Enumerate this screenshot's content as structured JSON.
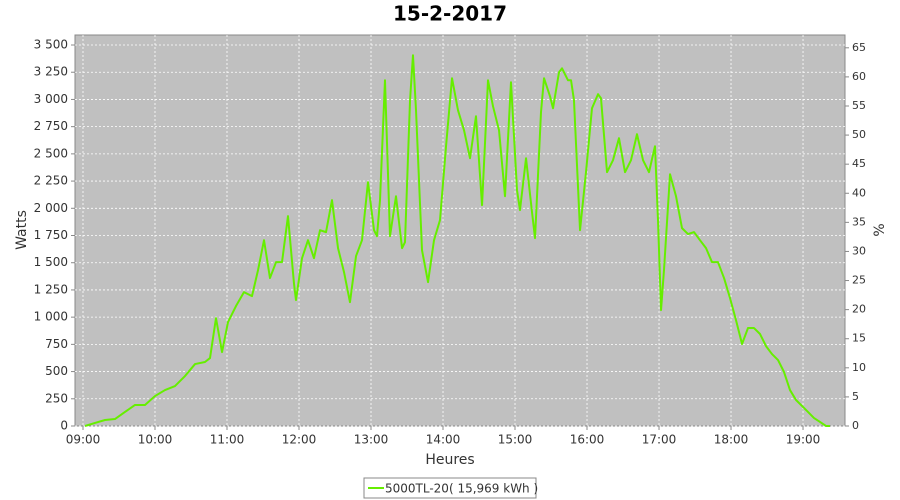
{
  "chart_data": {
    "type": "line",
    "title": "15-2-2017",
    "x_label": "Heures",
    "y_label": "Watts",
    "y2_label": "%",
    "grid": true,
    "xlim": [
      8.889,
      19.583
    ],
    "xticks": [
      {
        "value": 9,
        "label": "09:00"
      },
      {
        "value": 10,
        "label": "10:00"
      },
      {
        "value": 11,
        "label": "11:00"
      },
      {
        "value": 12,
        "label": "12:00"
      },
      {
        "value": 13,
        "label": "13:00"
      },
      {
        "value": 14,
        "label": "14:00"
      },
      {
        "value": 15,
        "label": "15:00"
      },
      {
        "value": 16,
        "label": "16:00"
      },
      {
        "value": 17,
        "label": "17:00"
      },
      {
        "value": 18,
        "label": "18:00"
      },
      {
        "value": 19,
        "label": "19:00"
      }
    ],
    "ylim": [
      0,
      3592
    ],
    "yticks": [
      0,
      250,
      500,
      750,
      {
        "value": 1000,
        "label": "1 000"
      },
      {
        "value": 1250,
        "label": "1 250"
      },
      {
        "value": 1500,
        "label": "1 500"
      },
      {
        "value": 1750,
        "label": "1 750"
      },
      {
        "value": 2000,
        "label": "2 000"
      },
      {
        "value": 2250,
        "label": "2 250"
      },
      {
        "value": 2500,
        "label": "2 500"
      },
      {
        "value": 2750,
        "label": "2 750"
      },
      {
        "value": 3000,
        "label": "3 000"
      },
      {
        "value": 3250,
        "label": "3 250"
      },
      {
        "value": 3500,
        "label": "3 500"
      }
    ],
    "y2lim": [
      0,
      67.2
    ],
    "y2ticks": [
      0,
      5,
      10,
      15,
      20,
      25,
      30,
      35,
      40,
      45,
      50,
      55,
      60,
      65
    ],
    "x": [
      9.028,
      9.167,
      9.306,
      9.444,
      9.583,
      9.722,
      9.861,
      10.0,
      10.139,
      10.278,
      10.417,
      10.556,
      10.694,
      10.764,
      10.847,
      10.931,
      11.014,
      11.125,
      11.236,
      11.347,
      11.431,
      11.514,
      11.597,
      11.681,
      11.764,
      11.847,
      11.931,
      11.958,
      12.042,
      12.125,
      12.208,
      12.292,
      12.375,
      12.458,
      12.542,
      12.625,
      12.708,
      12.792,
      12.875,
      12.958,
      13.042,
      13.083,
      13.125,
      13.194,
      13.264,
      13.347,
      13.431,
      13.472,
      13.542,
      13.583,
      13.625,
      13.708,
      13.792,
      13.875,
      13.958,
      14.042,
      14.125,
      14.208,
      14.292,
      14.375,
      14.458,
      14.542,
      14.625,
      14.694,
      14.778,
      14.861,
      14.944,
      15.028,
      15.069,
      15.153,
      15.236,
      15.278,
      15.361,
      15.403,
      15.486,
      15.528,
      15.611,
      15.653,
      15.736,
      15.778,
      15.819,
      15.903,
      15.986,
      16.069,
      16.153,
      16.194,
      16.278,
      16.361,
      16.444,
      16.528,
      16.611,
      16.694,
      16.778,
      16.861,
      16.944,
      16.986,
      17.028,
      17.069,
      17.153,
      17.236,
      17.319,
      17.403,
      17.486,
      17.569,
      17.653,
      17.736,
      17.819,
      17.903,
      17.986,
      18.069,
      18.153,
      18.236,
      18.319,
      18.403,
      18.486,
      18.569,
      18.653,
      18.736,
      18.819,
      18.903,
      18.986,
      19.069,
      19.153,
      19.236,
      19.319,
      19.375
    ],
    "series": [
      {
        "name": "5000TL-20( 15,969 kWh )",
        "color": "#66ee00",
        "values": [
          0,
          28,
          55,
          64,
          129,
          193,
          193,
          275,
          330,
          367,
          459,
          569,
          588,
          624,
          991,
          679,
          955,
          1102,
          1230,
          1193,
          1432,
          1707,
          1359,
          1505,
          1505,
          1928,
          1304,
          1157,
          1542,
          1707,
          1542,
          1799,
          1781,
          2075,
          1634,
          1414,
          1138,
          1561,
          1707,
          2240,
          1799,
          1744,
          2075,
          3176,
          1744,
          2111,
          1634,
          1689,
          2993,
          3406,
          2901,
          1616,
          1322,
          1707,
          1891,
          2570,
          3195,
          2901,
          2717,
          2460,
          2846,
          2029,
          3176,
          2938,
          2717,
          2111,
          3158,
          2166,
          1983,
          2460,
          1965,
          1726,
          2883,
          3195,
          3029,
          2919,
          3250,
          3286,
          3176,
          3176,
          2993,
          1799,
          2332,
          2919,
          3048,
          3011,
          2332,
          2442,
          2644,
          2332,
          2442,
          2681,
          2442,
          2332,
          2570,
          1891,
          1065,
          1432,
          2313,
          2111,
          1818,
          1763,
          1781,
          1707,
          1634,
          1505,
          1505,
          1359,
          1175,
          973,
          753,
          900,
          900,
          845,
          734,
          661,
          606,
          496,
          330,
          239,
          184,
          129,
          73,
          37,
          0,
          0
        ]
      }
    ]
  }
}
